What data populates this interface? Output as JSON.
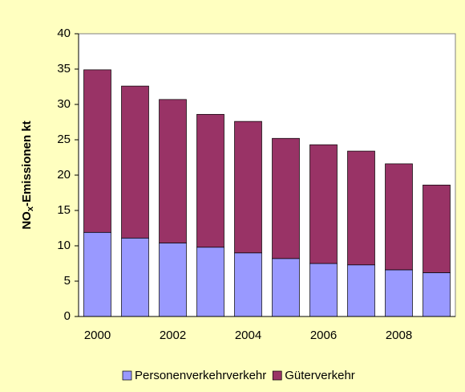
{
  "chart_data": {
    "type": "stacked_bar",
    "y_label": [
      "NO",
      "x",
      "-Emissionen kt"
    ],
    "categories": [
      "2000",
      null,
      "2002",
      null,
      "2004",
      null,
      "2006",
      null,
      "2008",
      null
    ],
    "series": [
      {
        "name": "Personenverkehrverkehr",
        "color": "#9999ff",
        "values": [
          11.9,
          11.1,
          10.4,
          9.8,
          9.0,
          8.2,
          7.5,
          7.3,
          6.6,
          6.2
        ]
      },
      {
        "name": "Güterverkehr",
        "color": "#993366",
        "values": [
          23.0,
          21.5,
          20.3,
          18.8,
          18.6,
          17.0,
          16.8,
          16.1,
          15.0,
          12.4
        ]
      }
    ],
    "ylim": [
      0,
      40
    ],
    "yticks": [
      0,
      5,
      10,
      15,
      20,
      25,
      30,
      35,
      40
    ],
    "legend": "bottom"
  }
}
